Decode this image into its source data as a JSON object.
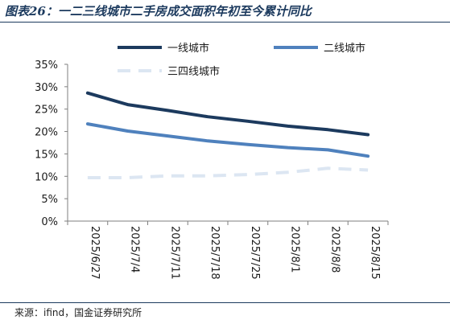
{
  "header": {
    "title": "图表26：一二三线城市二手房成交面积年初至今累计同比"
  },
  "footer": {
    "source": "来源：ifind，国金证券研究所"
  },
  "chart_data": {
    "type": "line",
    "title": "",
    "xlabel": "",
    "ylabel": "",
    "x": [
      "2025/6/27",
      "2025/7/4",
      "2025/7/11",
      "2025/7/18",
      "2025/7/25",
      "2025/8/1",
      "2025/8/8",
      "2025/8/15"
    ],
    "ylim": [
      0,
      0.35
    ],
    "yticks": [
      "0%",
      "5%",
      "10%",
      "15%",
      "20%",
      "25%",
      "30%",
      "35%"
    ],
    "grid": false,
    "legend_position": "top",
    "series": [
      {
        "name": "一线城市",
        "color": "#1c3a5e",
        "dash": "solid",
        "values": [
          0.286,
          0.26,
          0.247,
          0.233,
          0.223,
          0.212,
          0.204,
          0.193
        ]
      },
      {
        "name": "二线城市",
        "color": "#4f81bd",
        "dash": "solid",
        "values": [
          0.217,
          0.201,
          0.19,
          0.179,
          0.171,
          0.164,
          0.159,
          0.145
        ]
      },
      {
        "name": "三四线城市",
        "color": "#dce6f2",
        "dash": "dashed",
        "values": [
          0.097,
          0.097,
          0.101,
          0.101,
          0.104,
          0.109,
          0.118,
          0.114
        ]
      }
    ]
  }
}
